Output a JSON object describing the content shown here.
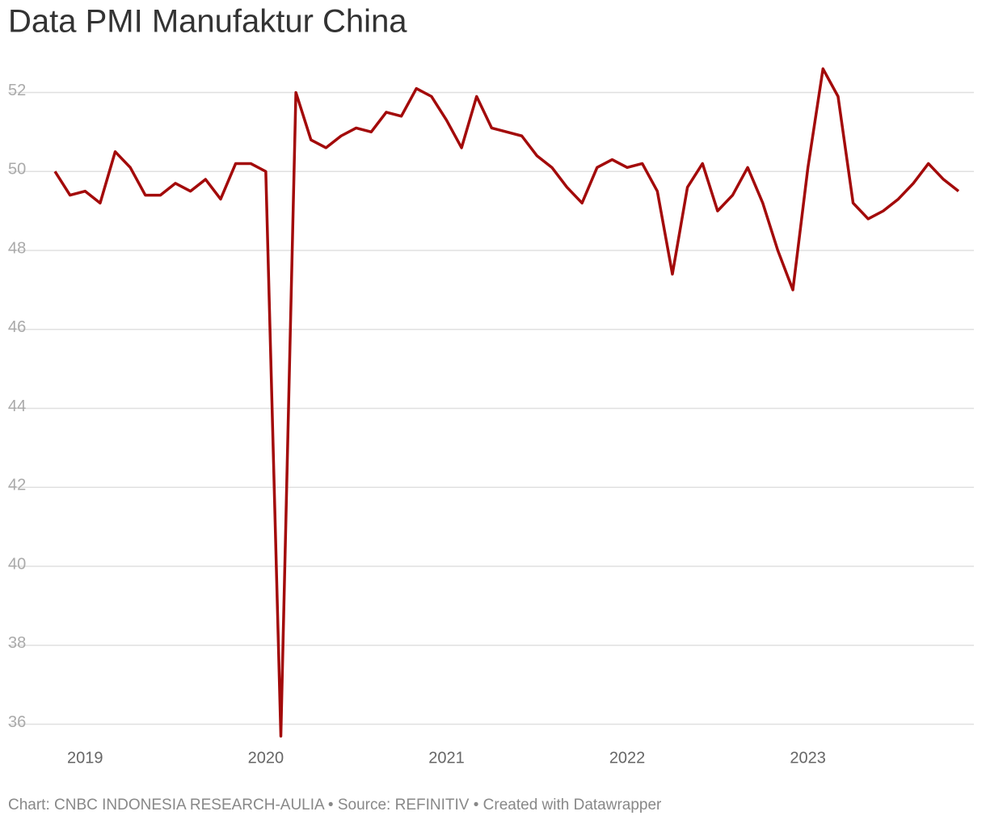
{
  "chart_data": {
    "type": "line",
    "title": "Data PMI Manufaktur China",
    "footer": "Chart: CNBC INDONESIA RESEARCH-AULIA • Source: REFINITIV • Created with Datawrapper",
    "x": [
      "2018-11",
      "2018-12",
      "2019-01",
      "2019-02",
      "2019-03",
      "2019-04",
      "2019-05",
      "2019-06",
      "2019-07",
      "2019-08",
      "2019-09",
      "2019-10",
      "2019-11",
      "2019-12",
      "2020-01",
      "2020-02",
      "2020-03",
      "2020-04",
      "2020-05",
      "2020-06",
      "2020-07",
      "2020-08",
      "2020-09",
      "2020-10",
      "2020-11",
      "2020-12",
      "2021-01",
      "2021-02",
      "2021-03",
      "2021-04",
      "2021-05",
      "2021-06",
      "2021-07",
      "2021-08",
      "2021-09",
      "2021-10",
      "2021-11",
      "2021-12",
      "2022-01",
      "2022-02",
      "2022-03",
      "2022-04",
      "2022-05",
      "2022-06",
      "2022-07",
      "2022-08",
      "2022-09",
      "2022-10",
      "2022-11",
      "2022-12",
      "2023-01",
      "2023-02",
      "2023-03",
      "2023-04",
      "2023-05",
      "2023-06",
      "2023-07",
      "2023-08",
      "2023-09",
      "2023-10",
      "2023-11"
    ],
    "series": [
      {
        "color": "#a30a0a",
        "values": [
          50.0,
          49.4,
          49.5,
          49.2,
          50.5,
          50.1,
          49.4,
          49.4,
          49.7,
          49.5,
          49.8,
          49.3,
          50.2,
          50.2,
          50.0,
          35.7,
          52.0,
          50.8,
          50.6,
          50.9,
          51.1,
          51.0,
          51.5,
          51.4,
          52.1,
          51.9,
          51.3,
          50.6,
          51.9,
          51.1,
          51.0,
          50.9,
          50.4,
          50.1,
          49.6,
          49.2,
          50.1,
          50.3,
          50.1,
          50.2,
          49.5,
          47.4,
          49.6,
          50.2,
          49.0,
          49.4,
          50.1,
          49.2,
          48.0,
          47.0,
          50.1,
          52.6,
          51.9,
          49.2,
          48.8,
          49.0,
          49.3,
          49.7,
          50.2,
          49.8,
          49.5
        ]
      }
    ],
    "xlim": [
      "2018-11",
      "2023-11"
    ],
    "xticks": [
      {
        "value": "2019-01",
        "label": "2019"
      },
      {
        "value": "2020-01",
        "label": "2020"
      },
      {
        "value": "2021-01",
        "label": "2021"
      },
      {
        "value": "2022-01",
        "label": "2022"
      },
      {
        "value": "2023-01",
        "label": "2023"
      }
    ],
    "ylim": [
      35.5,
      53
    ],
    "yticks": [
      36,
      38,
      40,
      42,
      44,
      46,
      48,
      50,
      52
    ],
    "grid": true
  }
}
